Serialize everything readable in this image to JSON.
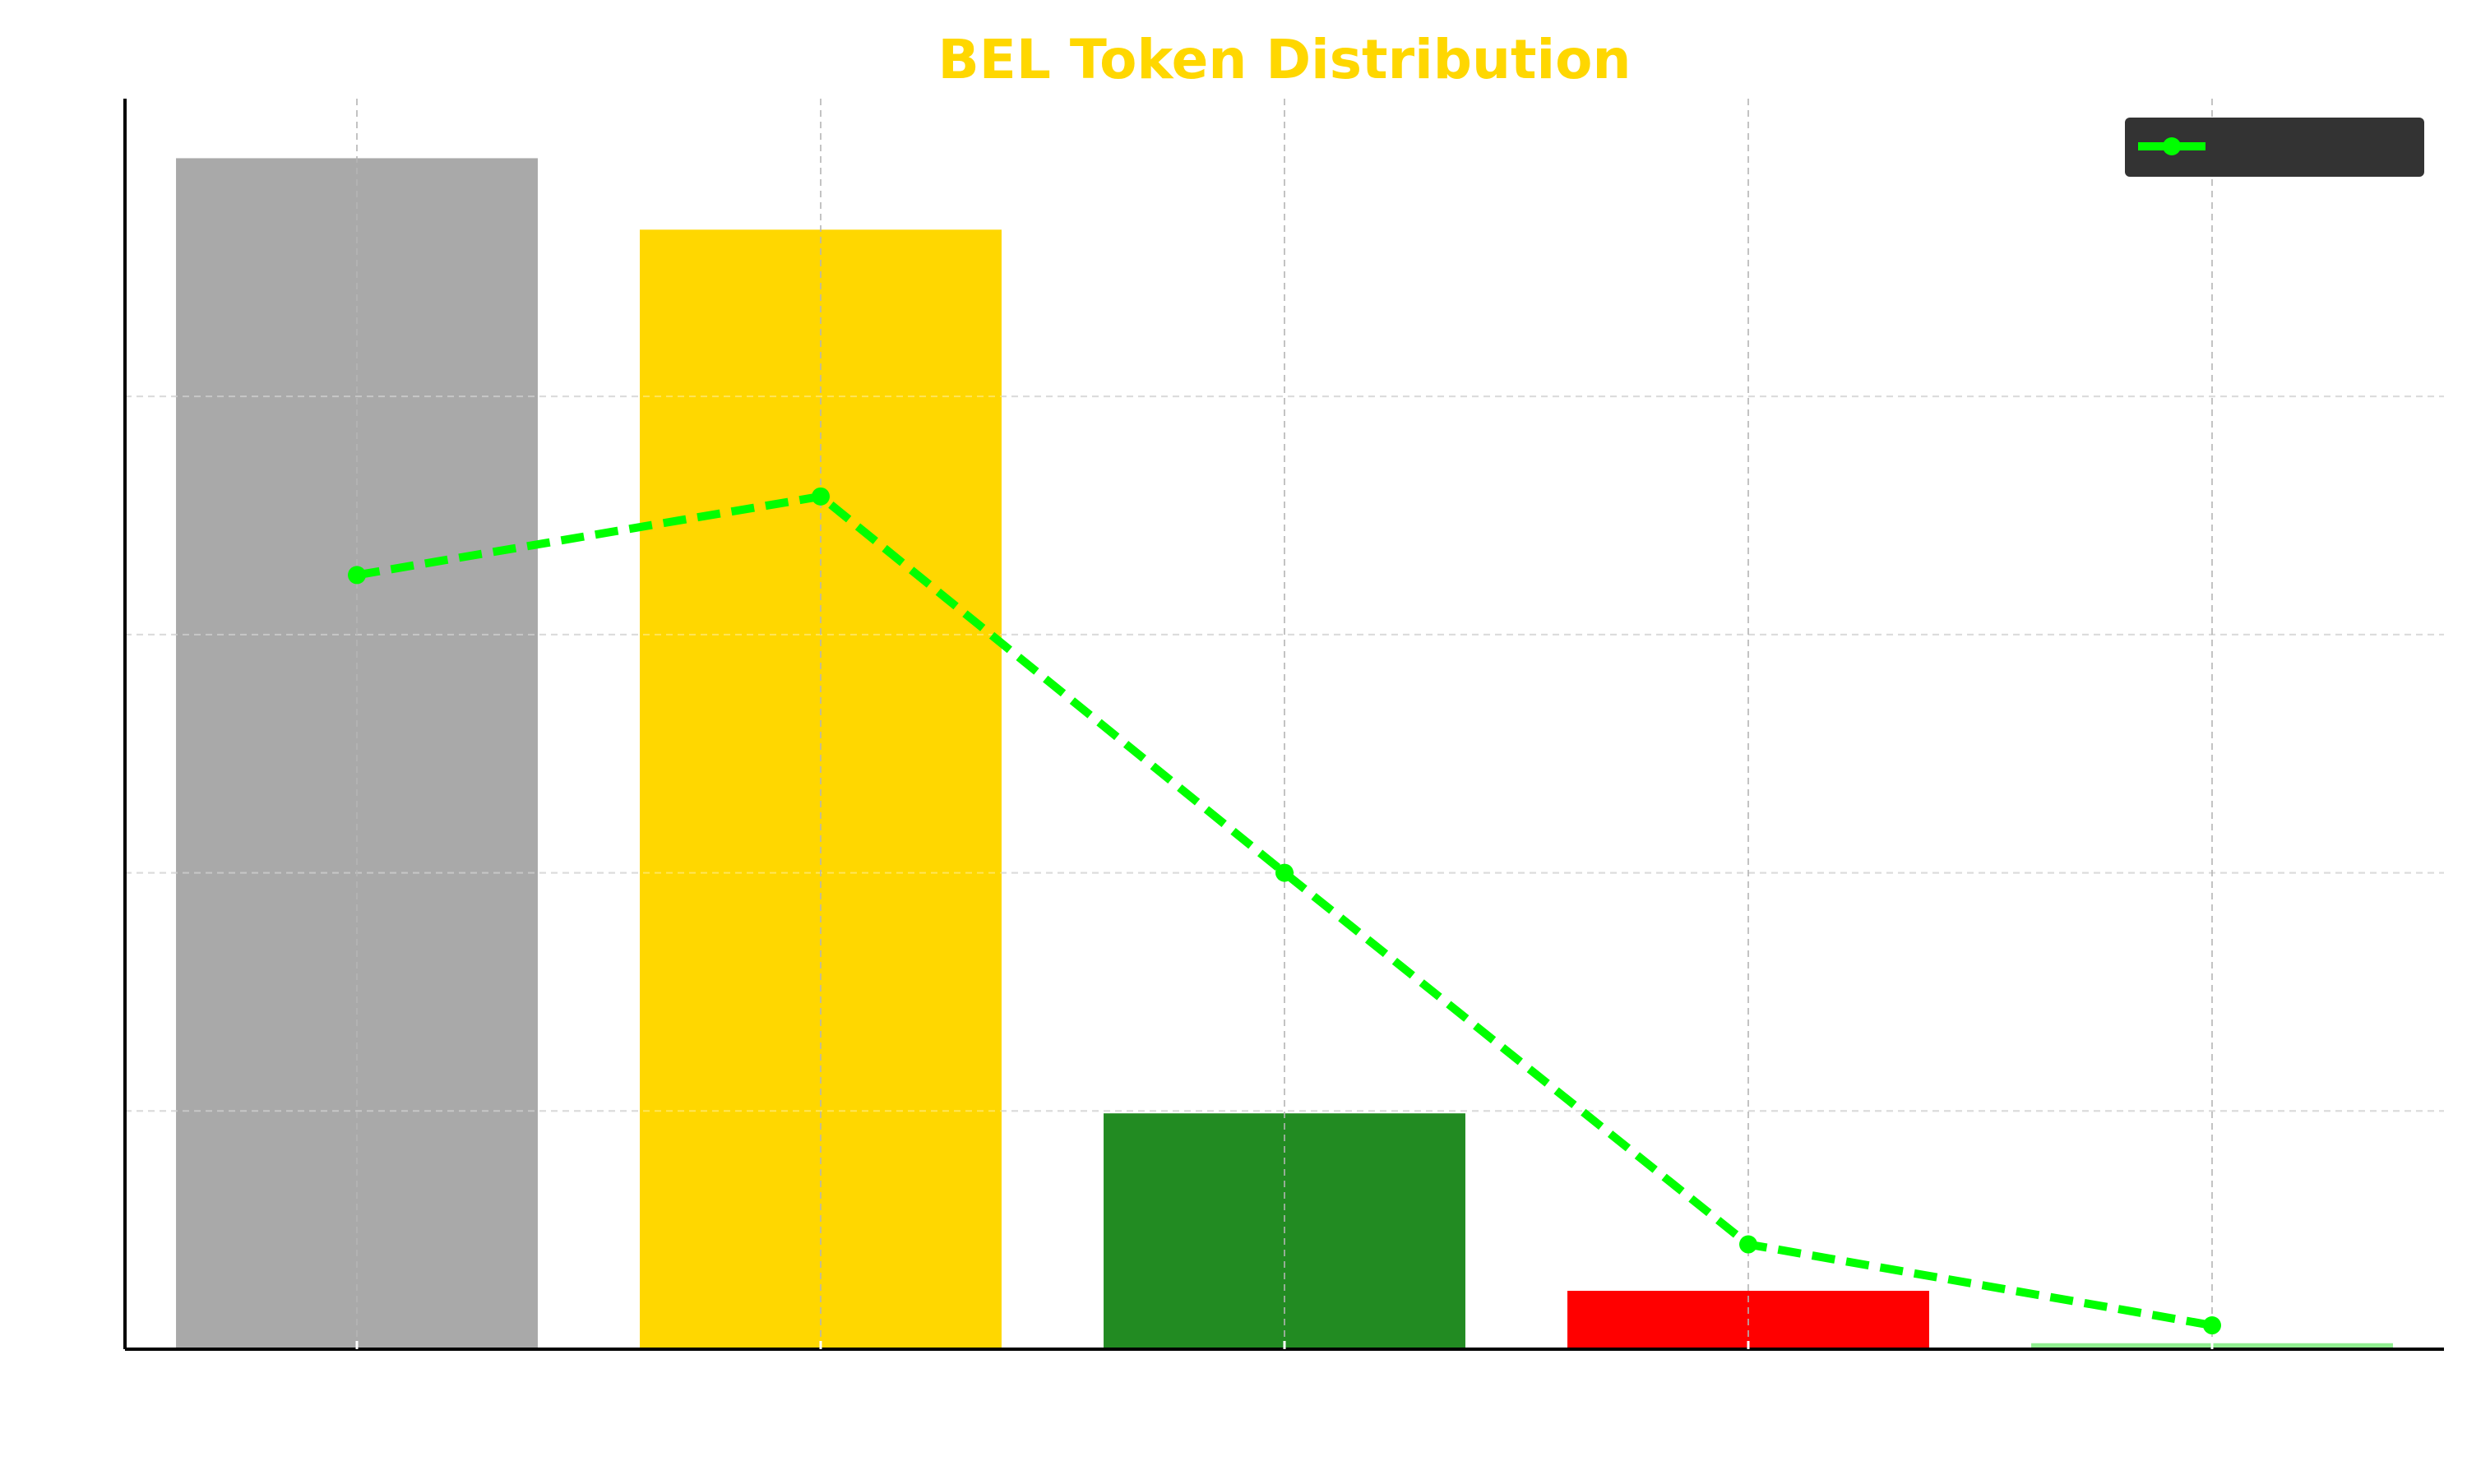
{
  "chart_data": {
    "type": "bar",
    "title": "BEL Token Distribution",
    "xlabel": "",
    "ylabel": "",
    "categories": [
      "",
      "",
      "",
      "",
      ""
    ],
    "ylim": [
      0,
      105
    ],
    "grid": true,
    "legend_position": "top-right",
    "bars": {
      "values": [
        100,
        94,
        19.8,
        4.9,
        0.5
      ],
      "colors": [
        "#a9a9a9",
        "#ffd700",
        "#228b22",
        "#ff0000",
        "#90ee90"
      ]
    },
    "line": {
      "name": "",
      "values": [
        65,
        71.6,
        40,
        8.8,
        2
      ],
      "color": "#00ff00",
      "style": "dashed",
      "marker": "circle"
    },
    "colors": {
      "title": "#ffd700",
      "axis": "#000000",
      "grid": "#c8c8c8",
      "legend_bg": "#333333"
    }
  }
}
